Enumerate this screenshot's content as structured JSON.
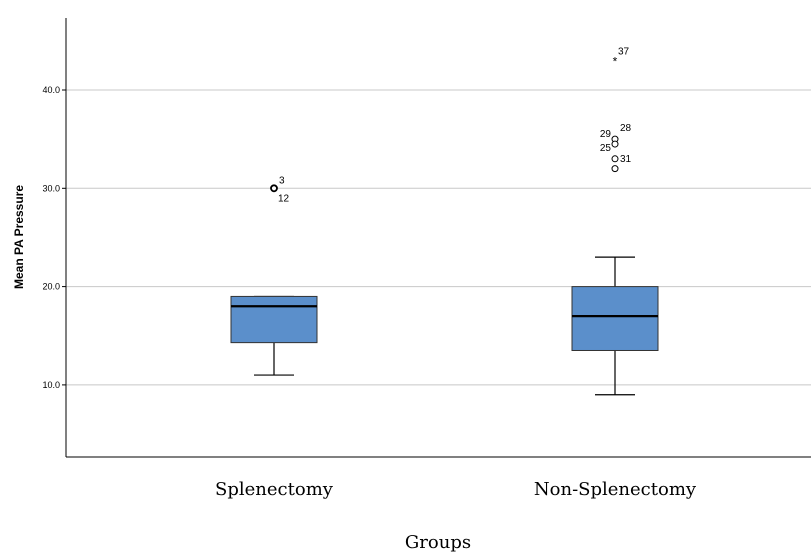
{
  "chart_data": {
    "type": "box",
    "title": "",
    "xlabel": "Groups",
    "ylabel": "Mean PA Pressure",
    "ylim": [
      2.5,
      47.5
    ],
    "yticks": [
      "10.0",
      "20.0",
      "30.0",
      "40.0"
    ],
    "grid": true,
    "box_color": "#5b8fcb",
    "categories": [
      "Splenectomy",
      "Non-Splenectomy"
    ],
    "boxes": [
      {
        "category": "Splenectomy",
        "min": 11,
        "q1": 14.3,
        "median": 18,
        "q3": 19,
        "max": 19,
        "outliers": [
          {
            "value": 30,
            "labels": [
              "3",
              "12"
            ],
            "type": "circle"
          }
        ]
      },
      {
        "category": "Non-Splenectomy",
        "min": 9,
        "q1": 13.5,
        "median": 17,
        "q3": 20,
        "max": 23,
        "outliers": [
          {
            "value": 43,
            "labels": [
              "37"
            ],
            "type": "star"
          },
          {
            "value": 35,
            "labels": [
              "29",
              "28"
            ],
            "type": "circle"
          },
          {
            "value": 34.5,
            "labels": [
              "25"
            ],
            "type": "circle"
          },
          {
            "value": 33,
            "labels": [
              "31"
            ],
            "type": "circle"
          },
          {
            "value": 32,
            "labels": [],
            "type": "circle"
          }
        ]
      }
    ]
  }
}
